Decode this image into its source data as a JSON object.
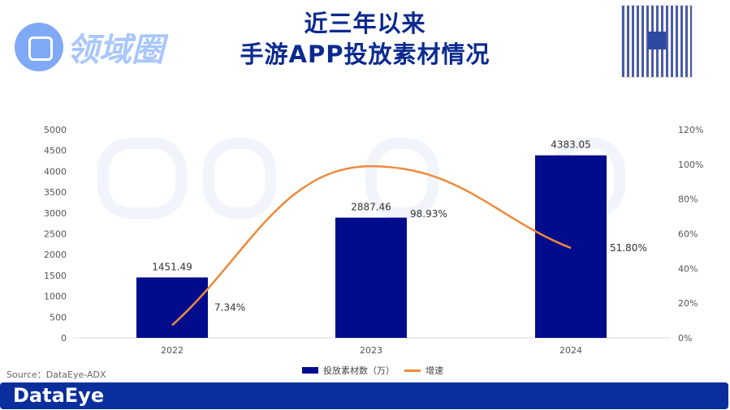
{
  "header": {
    "title_line1": "近三年以来",
    "title_line2": "手游APP投放素材情况",
    "brand_logo_text": "领域圈"
  },
  "watermark": "DataEye",
  "source": "Source：DataEye-ADX",
  "footer": {
    "logo": "DataEye"
  },
  "colors": {
    "bar": "#000c8c",
    "line": "#ec8a3c",
    "brand": "#0a2f9c"
  },
  "chart_data": {
    "type": "bar",
    "categories": [
      "2022",
      "2023",
      "2024"
    ],
    "series": [
      {
        "name": "投放素材数（万）",
        "type": "bar",
        "axis": "left",
        "values": [
          1451.49,
          2887.46,
          4383.05
        ],
        "labels": [
          "1451.49",
          "2887.46",
          "4383.05"
        ]
      },
      {
        "name": "增速",
        "type": "line",
        "axis": "right",
        "values": [
          7.34,
          98.93,
          51.8
        ],
        "labels": [
          "7.34%",
          "98.93%",
          "51.80%"
        ]
      }
    ],
    "left_axis": {
      "ylim": [
        0,
        5000
      ],
      "ticks": [
        "0",
        "500",
        "1000",
        "1500",
        "2000",
        "2500",
        "3000",
        "3500",
        "4000",
        "4500",
        "5000"
      ]
    },
    "right_axis": {
      "ylim": [
        0,
        120
      ],
      "ticks": [
        "0%",
        "20%",
        "40%",
        "60%",
        "80%",
        "100%",
        "120%"
      ]
    },
    "legend_position": "bottom",
    "grid": false
  }
}
